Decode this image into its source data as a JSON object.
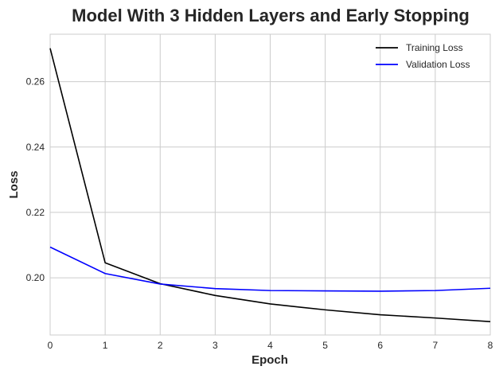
{
  "chart_data": {
    "type": "line",
    "title": "Model With 3 Hidden Layers and Early Stopping",
    "xlabel": "Epoch",
    "ylabel": "Loss",
    "x": [
      0,
      1,
      2,
      3,
      4,
      5,
      6,
      7,
      8
    ],
    "xlim": [
      0,
      8
    ],
    "ylim": [
      0.1825,
      0.2745
    ],
    "xticks": [
      0,
      1,
      2,
      3,
      4,
      5,
      6,
      7,
      8
    ],
    "xtick_labels": [
      "0",
      "1",
      "2",
      "3",
      "4",
      "5",
      "6",
      "7",
      "8"
    ],
    "yticks": [
      0.2,
      0.22,
      0.24,
      0.26
    ],
    "ytick_labels": [
      "0.20",
      "0.22",
      "0.24",
      "0.26"
    ],
    "grid": true,
    "legend_position": "top-right",
    "series": [
      {
        "name": "Training Loss",
        "color": "#000000",
        "values": [
          0.2702,
          0.2046,
          0.1982,
          0.1946,
          0.192,
          0.1902,
          0.1887,
          0.1877,
          0.1866
        ]
      },
      {
        "name": "Validation Loss",
        "color": "#0000ff",
        "values": [
          0.2094,
          0.2013,
          0.1981,
          0.1967,
          0.1961,
          0.196,
          0.1959,
          0.1961,
          0.1968
        ]
      }
    ]
  }
}
